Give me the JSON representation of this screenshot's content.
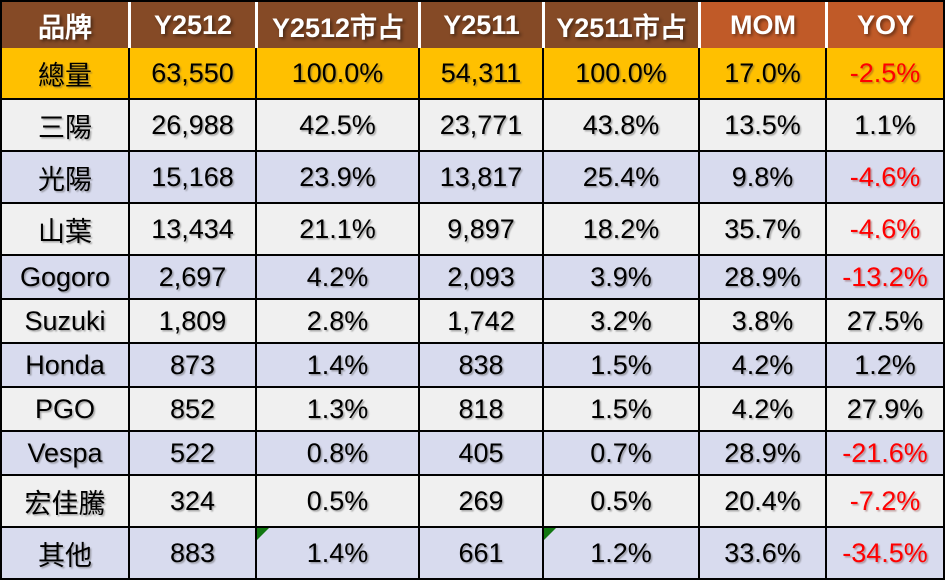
{
  "colors": {
    "header_dark_brown": "#854A26",
    "header_light_orange": "#C05A28",
    "total_row_gold": "#FFC000",
    "row_band_white": "#F0F0F0",
    "row_band_lavender": "#D8DBEE",
    "border_black": "#000000",
    "header_divider_white": "#FFFFFF",
    "text_black": "#000000",
    "negative_red": "#FF0000",
    "error_flag_green": "#117711"
  },
  "table": {
    "column_keys": [
      "brand",
      "y2512",
      "y2512_share",
      "y2511",
      "y2511_share",
      "mom",
      "yoy"
    ],
    "headers": [
      "品牌",
      "Y2512",
      "Y2512市占",
      "Y2511",
      "Y2511市占",
      "MOM",
      "YOY"
    ],
    "light_header_keys": [
      "mom",
      "yoy"
    ],
    "rows": [
      {
        "brand": "總量",
        "y2512": "63,550",
        "y2512_share": "100.0%",
        "y2511": "54,311",
        "y2511_share": "100.0%",
        "mom": "17.0%",
        "yoy": "-2.5%",
        "style": "total",
        "flagged": []
      },
      {
        "brand": "三陽",
        "y2512": "26,988",
        "y2512_share": "42.5%",
        "y2511": "23,771",
        "y2511_share": "43.8%",
        "mom": "13.5%",
        "yoy": "1.1%",
        "style": "band-a",
        "flagged": []
      },
      {
        "brand": "光陽",
        "y2512": "15,168",
        "y2512_share": "23.9%",
        "y2511": "13,817",
        "y2511_share": "25.4%",
        "mom": "9.8%",
        "yoy": "-4.6%",
        "style": "band-b",
        "flagged": []
      },
      {
        "brand": "山葉",
        "y2512": "13,434",
        "y2512_share": "21.1%",
        "y2511": "9,897",
        "y2511_share": "18.2%",
        "mom": "35.7%",
        "yoy": "-4.6%",
        "style": "band-a",
        "flagged": []
      },
      {
        "brand": "Gogoro",
        "y2512": "2,697",
        "y2512_share": "4.2%",
        "y2511": "2,093",
        "y2511_share": "3.9%",
        "mom": "28.9%",
        "yoy": "-13.2%",
        "style": "band-b",
        "flagged": []
      },
      {
        "brand": "Suzuki",
        "y2512": "1,809",
        "y2512_share": "2.8%",
        "y2511": "1,742",
        "y2511_share": "3.2%",
        "mom": "3.8%",
        "yoy": "27.5%",
        "style": "band-a",
        "flagged": []
      },
      {
        "brand": "Honda",
        "y2512": "873",
        "y2512_share": "1.4%",
        "y2511": "838",
        "y2511_share": "1.5%",
        "mom": "4.2%",
        "yoy": "1.2%",
        "style": "band-b",
        "flagged": []
      },
      {
        "brand": "PGO",
        "y2512": "852",
        "y2512_share": "1.3%",
        "y2511": "818",
        "y2511_share": "1.5%",
        "mom": "4.2%",
        "yoy": "27.9%",
        "style": "band-a",
        "flagged": []
      },
      {
        "brand": "Vespa",
        "y2512": "522",
        "y2512_share": "0.8%",
        "y2511": "405",
        "y2511_share": "0.7%",
        "mom": "28.9%",
        "yoy": "-21.6%",
        "style": "band-b",
        "flagged": []
      },
      {
        "brand": "宏佳騰",
        "y2512": "324",
        "y2512_share": "0.5%",
        "y2511": "269",
        "y2511_share": "0.5%",
        "mom": "20.4%",
        "yoy": "-7.2%",
        "style": "band-a",
        "flagged": []
      },
      {
        "brand": "其他",
        "y2512": "883",
        "y2512_share": "1.4%",
        "y2511": "661",
        "y2511_share": "1.2%",
        "mom": "33.6%",
        "yoy": "-34.5%",
        "style": "band-b",
        "flagged": [
          "y2512_share",
          "y2511_share"
        ]
      }
    ]
  },
  "chart_data": {
    "type": "table",
    "title": "",
    "columns": [
      "品牌",
      "Y2512",
      "Y2512市占",
      "Y2511",
      "Y2511市占",
      "MOM",
      "YOY"
    ],
    "rows": [
      [
        "總量",
        63550,
        "100.0%",
        54311,
        "100.0%",
        "17.0%",
        "-2.5%"
      ],
      [
        "三陽",
        26988,
        "42.5%",
        23771,
        "43.8%",
        "13.5%",
        "1.1%"
      ],
      [
        "光陽",
        15168,
        "23.9%",
        13817,
        "25.4%",
        "9.8%",
        "-4.6%"
      ],
      [
        "山葉",
        13434,
        "21.1%",
        9897,
        "18.2%",
        "35.7%",
        "-4.6%"
      ],
      [
        "Gogoro",
        2697,
        "4.2%",
        2093,
        "3.9%",
        "28.9%",
        "-13.2%"
      ],
      [
        "Suzuki",
        1809,
        "2.8%",
        1742,
        "3.2%",
        "3.8%",
        "27.5%"
      ],
      [
        "Honda",
        873,
        "1.4%",
        838,
        "1.5%",
        "4.2%",
        "1.2%"
      ],
      [
        "PGO",
        852,
        "1.3%",
        818,
        "1.5%",
        "4.2%",
        "27.9%"
      ],
      [
        "Vespa",
        522,
        "0.8%",
        405,
        "0.7%",
        "28.9%",
        "-21.6%"
      ],
      [
        "宏佳騰",
        324,
        "0.5%",
        269,
        "0.5%",
        "20.4%",
        "-7.2%"
      ],
      [
        "其他",
        883,
        "1.4%",
        661,
        "1.2%",
        "33.6%",
        "-34.5%"
      ]
    ],
    "notes": "Negative YOY values rendered in red; 其他 row has green error-flag triangles on both 市占 cells; 總量 row highlighted gold; body rows alternate white/lavender banding."
  }
}
